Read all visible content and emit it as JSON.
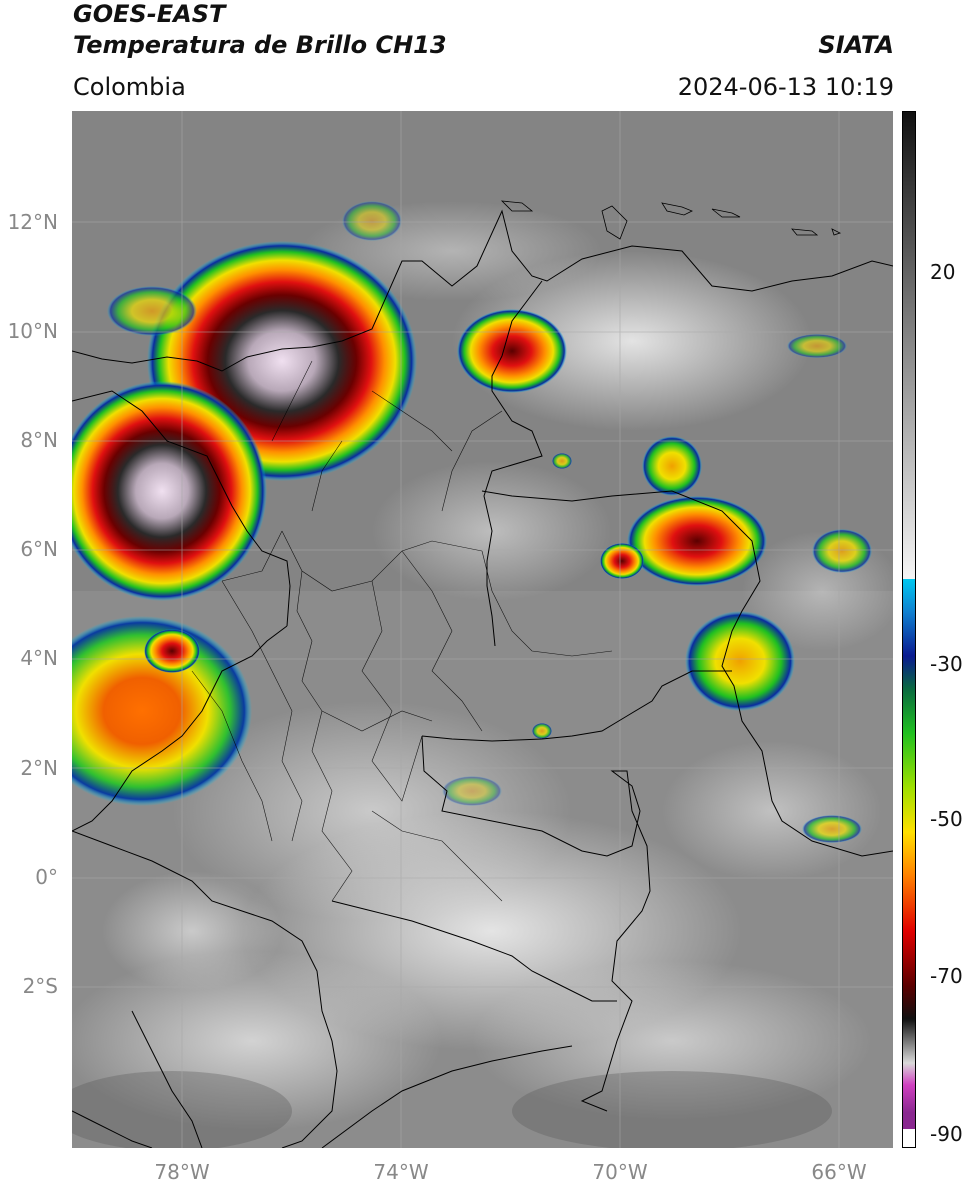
{
  "header": {
    "satellite": "GOES-EAST",
    "product": "Temperatura de Brillo CH13",
    "region": "Colombia",
    "agency": "SIATA",
    "timestamp": "2024-06-13 10:19"
  },
  "map": {
    "lon_range": [
      -80,
      -65
    ],
    "lat_range": [
      -5,
      14
    ],
    "lat_ticks": [
      "12°N",
      "10°N",
      "8°N",
      "6°N",
      "4°N",
      "2°N",
      "0°",
      "2°S"
    ],
    "lon_ticks": [
      "78°W",
      "74°W",
      "70°W",
      "66°W"
    ],
    "gridlines": true
  },
  "colorbar": {
    "tick_labels": [
      "20",
      "-30",
      "-50",
      "-70",
      "-90"
    ],
    "colors": {
      "clear": "#ffffff",
      "magenta": "#d040c0",
      "purple": "#8a2890",
      "gray_light": "#d9d9d9",
      "gray_dark": "#1a1a1a",
      "darkred": "#5a0000",
      "red": "#e00000",
      "orange": "#ff8000",
      "yellow": "#ffe000",
      "green": "#20c020",
      "darkgreen": "#0a6a20",
      "navy": "#0a1a90",
      "blue": "#1050c0",
      "cyan": "#00c8f0"
    }
  }
}
